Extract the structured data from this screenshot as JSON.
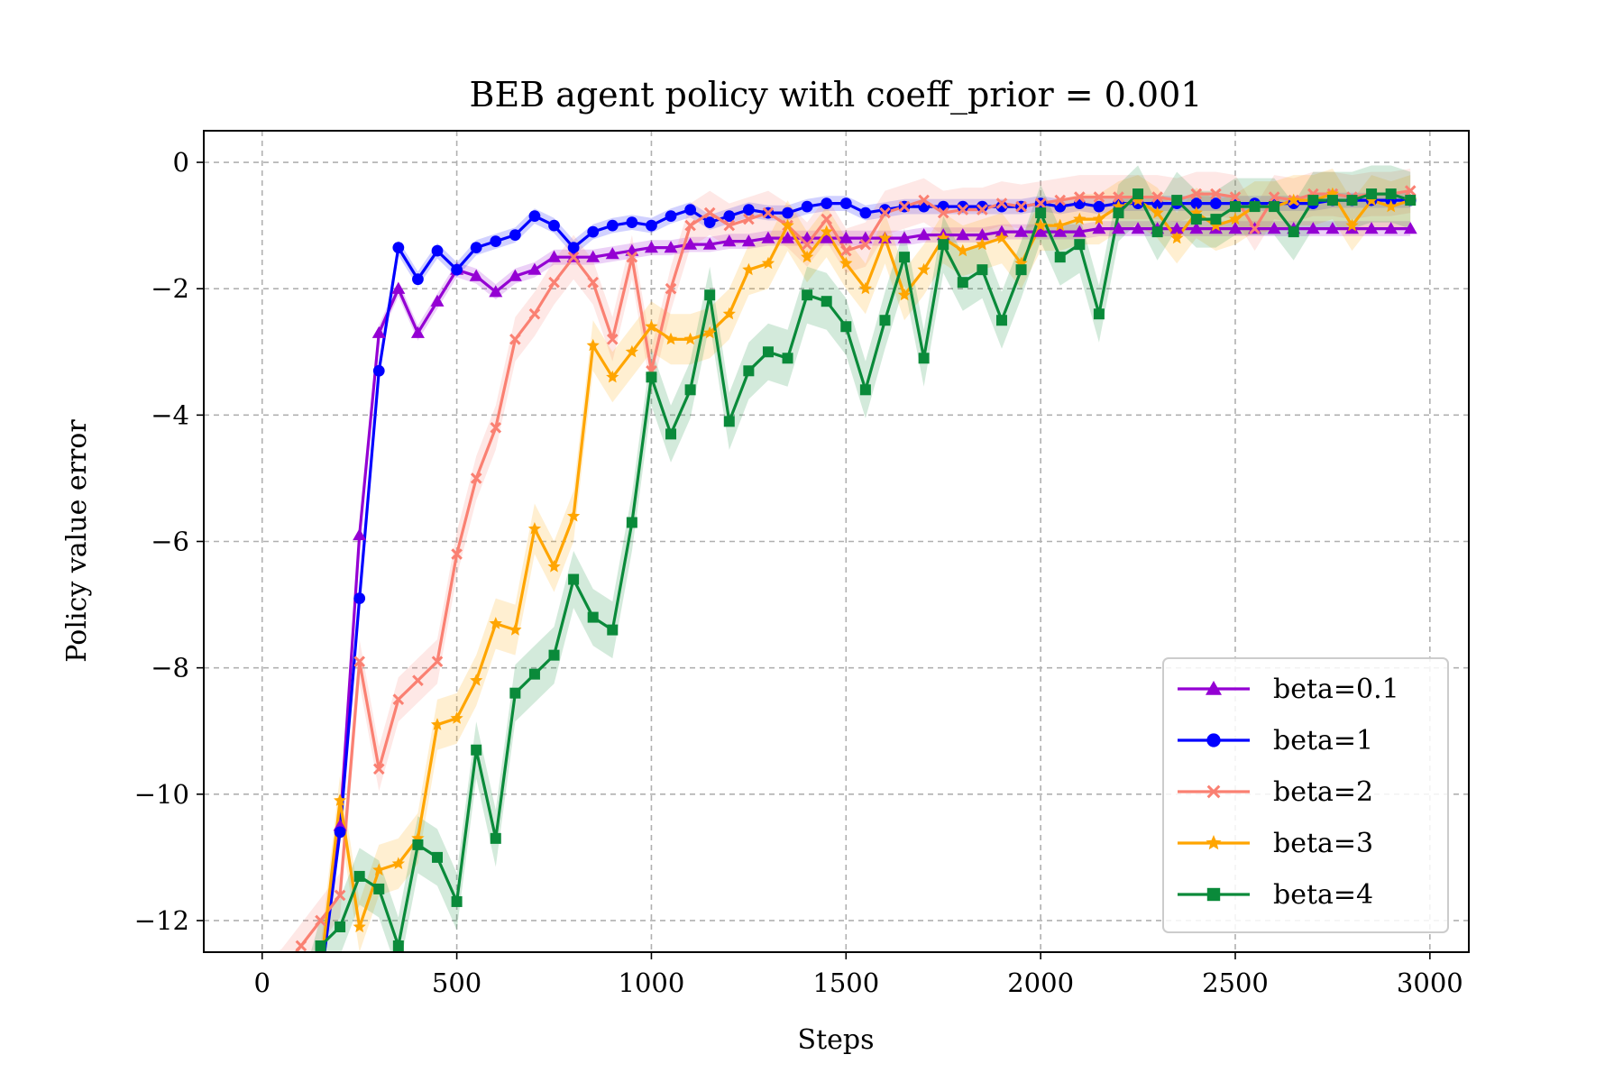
{
  "chart_data": {
    "type": "line",
    "title": "BEB agent policy with coeff_prior = 0.001",
    "xlabel": "Steps",
    "ylabel": "Policy value error",
    "xlim": [
      -150,
      3100
    ],
    "ylim": [
      -12.5,
      0.5
    ],
    "xticks": [
      0,
      500,
      1000,
      1500,
      2000,
      2500,
      3000
    ],
    "xtick_labels": [
      "0",
      "500",
      "1000",
      "1500",
      "2000",
      "2500",
      "3000"
    ],
    "yticks": [
      0,
      -2,
      -4,
      -6,
      -8,
      -10,
      -12
    ],
    "ytick_labels": [
      "0",
      "−2",
      "−4",
      "−6",
      "−8",
      "−10",
      "−12"
    ],
    "grid": true,
    "legend_position": "lower right",
    "series": [
      {
        "name": "beta=0.1",
        "color": "#9400D3",
        "marker": "triangle",
        "x": [
          0,
          50,
          100,
          150,
          200,
          250,
          300,
          350,
          400,
          450,
          500,
          550,
          600,
          650,
          700,
          750,
          800,
          850,
          900,
          950,
          1000,
          1050,
          1100,
          1150,
          1200,
          1250,
          1300,
          1350,
          1400,
          1450,
          1500,
          1550,
          1600,
          1650,
          1700,
          1750,
          1800,
          1850,
          1900,
          1950,
          2000,
          2050,
          2100,
          2150,
          2200,
          2250,
          2300,
          2350,
          2400,
          2450,
          2500,
          2550,
          2600,
          2650,
          2700,
          2750,
          2800,
          2850,
          2900,
          2950
        ],
        "y": [
          -13.5,
          -13.5,
          -13.5,
          -13.0,
          -10.5,
          -5.9,
          -2.7,
          -2.0,
          -2.7,
          -2.2,
          -1.7,
          -1.8,
          -2.05,
          -1.8,
          -1.7,
          -1.5,
          -1.5,
          -1.5,
          -1.45,
          -1.4,
          -1.35,
          -1.35,
          -1.3,
          -1.3,
          -1.25,
          -1.25,
          -1.2,
          -1.2,
          -1.2,
          -1.2,
          -1.2,
          -1.2,
          -1.2,
          -1.2,
          -1.15,
          -1.15,
          -1.15,
          -1.15,
          -1.1,
          -1.1,
          -1.1,
          -1.1,
          -1.1,
          -1.05,
          -1.05,
          -1.05,
          -1.05,
          -1.05,
          -1.05,
          -1.05,
          -1.05,
          -1.05,
          -1.05,
          -1.05,
          -1.05,
          -1.05,
          -1.05,
          -1.05,
          -1.05,
          -1.05
        ],
        "spread": 0.12
      },
      {
        "name": "beta=1",
        "color": "#0000FF",
        "marker": "circle",
        "x": [
          0,
          50,
          100,
          150,
          200,
          250,
          300,
          350,
          400,
          450,
          500,
          550,
          600,
          650,
          700,
          750,
          800,
          850,
          900,
          950,
          1000,
          1050,
          1100,
          1150,
          1200,
          1250,
          1300,
          1350,
          1400,
          1450,
          1500,
          1550,
          1600,
          1650,
          1700,
          1750,
          1800,
          1850,
          1900,
          1950,
          2000,
          2050,
          2100,
          2150,
          2200,
          2250,
          2300,
          2350,
          2400,
          2450,
          2500,
          2550,
          2600,
          2650,
          2700,
          2750,
          2800,
          2850,
          2900,
          2950
        ],
        "y": [
          -13.5,
          -13.5,
          -13.5,
          -13.0,
          -10.6,
          -6.9,
          -3.3,
          -1.35,
          -1.85,
          -1.4,
          -1.7,
          -1.35,
          -1.25,
          -1.15,
          -0.85,
          -1.0,
          -1.35,
          -1.1,
          -1.0,
          -0.95,
          -1.0,
          -0.85,
          -0.75,
          -0.95,
          -0.85,
          -0.75,
          -0.8,
          -0.8,
          -0.7,
          -0.65,
          -0.65,
          -0.8,
          -0.75,
          -0.7,
          -0.7,
          -0.7,
          -0.7,
          -0.7,
          -0.7,
          -0.7,
          -0.65,
          -0.7,
          -0.65,
          -0.7,
          -0.65,
          -0.65,
          -0.65,
          -0.65,
          -0.65,
          -0.65,
          -0.65,
          -0.65,
          -0.65,
          -0.65,
          -0.65,
          -0.6,
          -0.6,
          -0.6,
          -0.6,
          -0.6
        ],
        "spread": 0.12
      },
      {
        "name": "beta=2",
        "color": "#FA8072",
        "marker": "x",
        "x": [
          0,
          50,
          100,
          150,
          200,
          250,
          300,
          350,
          400,
          450,
          500,
          550,
          600,
          650,
          700,
          750,
          800,
          850,
          900,
          950,
          1000,
          1050,
          1100,
          1150,
          1200,
          1250,
          1300,
          1350,
          1400,
          1450,
          1500,
          1550,
          1600,
          1650,
          1700,
          1750,
          1800,
          1850,
          1900,
          1950,
          2000,
          2050,
          2100,
          2150,
          2200,
          2250,
          2300,
          2350,
          2400,
          2450,
          2500,
          2550,
          2600,
          2650,
          2700,
          2750,
          2800,
          2850,
          2900,
          2950
        ],
        "y": [
          -13.0,
          -12.8,
          -12.4,
          -12.0,
          -11.6,
          -7.9,
          -9.6,
          -8.5,
          -8.2,
          -7.9,
          -6.2,
          -5.0,
          -4.2,
          -2.8,
          -2.4,
          -1.9,
          -1.5,
          -1.9,
          -2.8,
          -1.5,
          -3.3,
          -2.0,
          -1.0,
          -0.8,
          -1.0,
          -0.9,
          -0.8,
          -1.0,
          -1.3,
          -0.9,
          -1.4,
          -1.3,
          -0.8,
          -0.7,
          -0.6,
          -0.8,
          -0.75,
          -0.75,
          -0.65,
          -0.7,
          -0.65,
          -0.6,
          -0.55,
          -0.55,
          -0.55,
          -0.55,
          -0.55,
          -0.6,
          -0.5,
          -0.5,
          -0.55,
          -1.05,
          -0.55,
          -0.6,
          -0.5,
          -0.5,
          -0.55,
          -0.5,
          -0.5,
          -0.45
        ],
        "spread": 0.35
      },
      {
        "name": "beta=3",
        "color": "#FFA500",
        "marker": "star",
        "x": [
          0,
          50,
          100,
          150,
          200,
          250,
          300,
          350,
          400,
          450,
          500,
          550,
          600,
          650,
          700,
          750,
          800,
          850,
          900,
          950,
          1000,
          1050,
          1100,
          1150,
          1200,
          1250,
          1300,
          1350,
          1400,
          1450,
          1500,
          1550,
          1600,
          1650,
          1700,
          1750,
          1800,
          1850,
          1900,
          1950,
          2000,
          2050,
          2100,
          2150,
          2200,
          2250,
          2300,
          2350,
          2400,
          2450,
          2500,
          2550,
          2600,
          2650,
          2700,
          2750,
          2800,
          2850,
          2900,
          2950
        ],
        "y": [
          -13.5,
          -13.5,
          -13.5,
          -12.8,
          -10.1,
          -12.1,
          -11.2,
          -11.1,
          -10.7,
          -8.9,
          -8.8,
          -8.2,
          -7.3,
          -7.4,
          -5.8,
          -6.4,
          -5.6,
          -2.9,
          -3.4,
          -3.0,
          -2.6,
          -2.8,
          -2.8,
          -2.7,
          -2.4,
          -1.7,
          -1.6,
          -1.0,
          -1.5,
          -1.1,
          -1.6,
          -2.0,
          -1.2,
          -2.1,
          -1.7,
          -1.2,
          -1.4,
          -1.3,
          -1.2,
          -1.6,
          -1.0,
          -1.0,
          -0.9,
          -0.9,
          -0.7,
          -0.6,
          -0.8,
          -1.2,
          -0.8,
          -1.0,
          -0.9,
          -0.7,
          -0.7,
          -0.6,
          -0.6,
          -0.5,
          -1.0,
          -0.6,
          -0.7,
          -0.6
        ],
        "spread": 0.4
      },
      {
        "name": "beta=4",
        "color": "#0A8A3A",
        "marker": "square",
        "x": [
          0,
          50,
          100,
          150,
          200,
          250,
          300,
          350,
          400,
          450,
          500,
          550,
          600,
          650,
          700,
          750,
          800,
          850,
          900,
          950,
          1000,
          1050,
          1100,
          1150,
          1200,
          1250,
          1300,
          1350,
          1400,
          1450,
          1500,
          1550,
          1600,
          1650,
          1700,
          1750,
          1800,
          1850,
          1900,
          1950,
          2000,
          2050,
          2100,
          2150,
          2200,
          2250,
          2300,
          2350,
          2400,
          2450,
          2500,
          2550,
          2600,
          2650,
          2700,
          2750,
          2800,
          2850,
          2900,
          2950
        ],
        "y": [
          -13.5,
          -13.5,
          -13.5,
          -12.4,
          -12.1,
          -11.3,
          -11.5,
          -12.4,
          -10.8,
          -11.0,
          -11.7,
          -9.3,
          -10.7,
          -8.4,
          -8.1,
          -7.8,
          -6.6,
          -7.2,
          -7.4,
          -5.7,
          -3.4,
          -4.3,
          -3.6,
          -2.1,
          -4.1,
          -3.3,
          -3.0,
          -3.1,
          -2.1,
          -2.2,
          -2.6,
          -3.6,
          -2.5,
          -1.5,
          -3.1,
          -1.3,
          -1.9,
          -1.7,
          -2.5,
          -1.7,
          -0.8,
          -1.5,
          -1.3,
          -2.4,
          -0.8,
          -0.5,
          -1.1,
          -0.6,
          -0.9,
          -0.9,
          -0.7,
          -0.7,
          -0.7,
          -1.1,
          -0.6,
          -0.6,
          -0.6,
          -0.5,
          -0.5,
          -0.6
        ],
        "spread": 0.45
      }
    ]
  }
}
